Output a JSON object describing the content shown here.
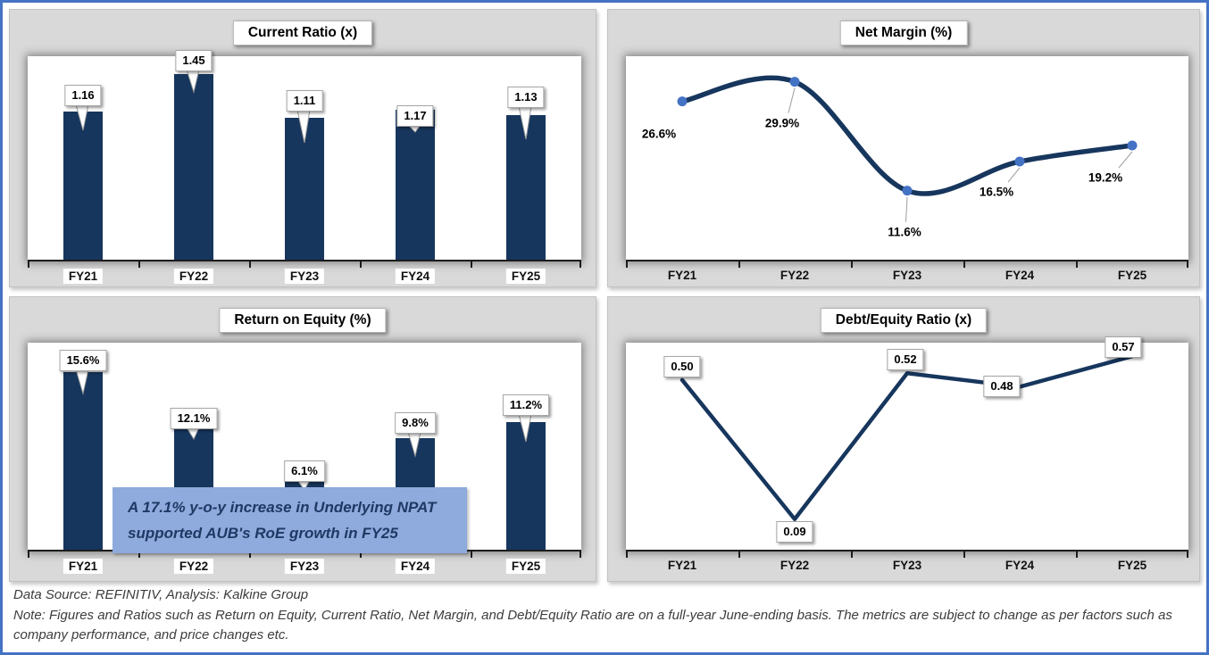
{
  "footer": {
    "source": "Data Source: REFINITIV, Analysis: Kalkine Group",
    "note": "Note: Figures and Ratios such as Return on Equity, Current Ratio, Net Margin, and Debt/Equity Ratio  are on a full-year June-ending basis. The metrics are subject to change as per factors such as company performance, and price changes etc."
  },
  "colors": {
    "frame_blue": "#4472C4",
    "panel_gray": "#D9D9D9",
    "navy": "#17365D",
    "marker_blue": "#4472C4",
    "leader_gray": "#9f9f9f",
    "axis_black": "#1c1c1c",
    "annotation_bg": "#8FAADC",
    "annotation_text": "#1F3864"
  },
  "chart_data": [
    {
      "id": "current-ratio",
      "type": "bar",
      "title": "Current Ratio (x)",
      "categories": [
        "FY21",
        "FY22",
        "FY23",
        "FY24",
        "FY25"
      ],
      "values": [
        1.16,
        1.45,
        1.11,
        1.17,
        1.13
      ],
      "value_labels": [
        "1.16",
        "1.45",
        "1.11",
        "1.17",
        "1.13"
      ],
      "ylim": [
        0,
        1.59
      ],
      "grid": false,
      "legend": false
    },
    {
      "id": "net-margin",
      "type": "line",
      "title": "Net Margin (%)",
      "categories": [
        "FY21",
        "FY22",
        "FY23",
        "FY24",
        "FY25"
      ],
      "values": [
        26.6,
        29.9,
        11.6,
        16.5,
        19.2
      ],
      "value_labels": [
        "26.6%",
        "29.9%",
        "11.6%",
        "16.5%",
        "19.2%"
      ],
      "ylim": [
        0,
        34.2
      ],
      "smooth": true,
      "markers": true,
      "grid": false,
      "legend": false
    },
    {
      "id": "return-on-equity",
      "type": "bar",
      "title": "Return on Equity (%)",
      "categories": [
        "FY21",
        "FY22",
        "FY23",
        "FY24",
        "FY25"
      ],
      "values": [
        15.6,
        12.1,
        6.1,
        9.8,
        11.2
      ],
      "value_labels": [
        "15.6%",
        "12.1%",
        "6.1%",
        "9.8%",
        "11.2%"
      ],
      "ylim": [
        0,
        18.2
      ],
      "grid": false,
      "legend": false,
      "annotation_lines": [
        "A 17.1% y-o-y increase in Underlying NPAT",
        "supported AUB's RoE growth in FY25"
      ]
    },
    {
      "id": "debt-equity",
      "type": "line",
      "title": "Debt/Equity Ratio (x)",
      "categories": [
        "FY21",
        "FY22",
        "FY23",
        "FY24",
        "FY25"
      ],
      "values": [
        0.5,
        0.09,
        0.52,
        0.48,
        0.57
      ],
      "value_labels": [
        "0.50",
        "0.09",
        "0.52",
        "0.48",
        "0.57"
      ],
      "ylim": [
        0,
        0.61
      ],
      "smooth": false,
      "markers": false,
      "grid": false,
      "legend": false
    }
  ]
}
